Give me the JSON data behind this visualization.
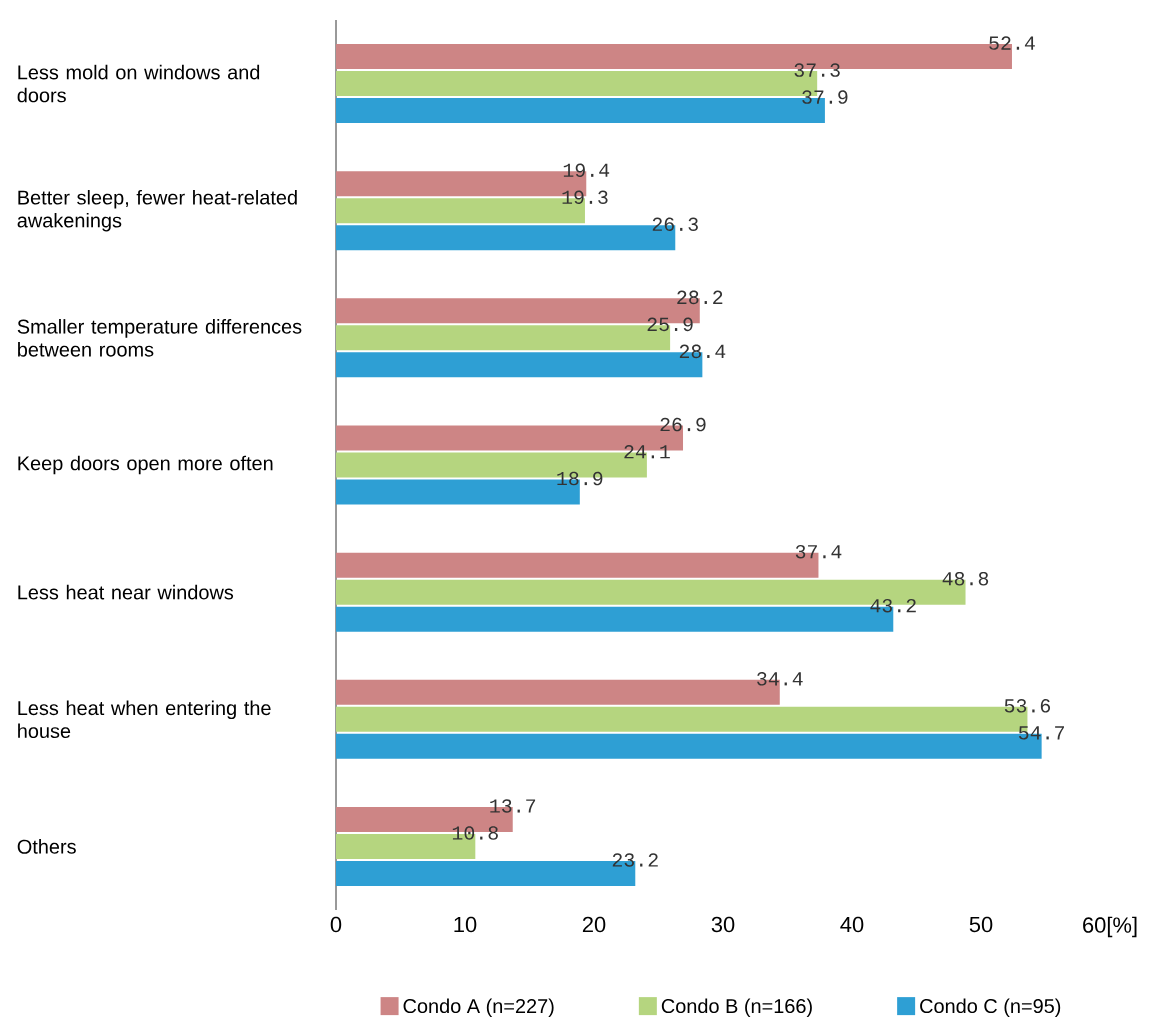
{
  "chart_data": {
    "type": "bar",
    "orientation": "horizontal",
    "categories": [
      "Less mold on windows and doors",
      "Better sleep, fewer heat-related awakenings",
      "Smaller temperature differences between rooms",
      "Keep doors open more often",
      "Less heat near windows",
      "Less heat when entering the house",
      "Others"
    ],
    "series": [
      {
        "name": "Condo A (n=227)",
        "color": "#cd8585",
        "values": [
          52.4,
          19.4,
          28.2,
          26.9,
          37.4,
          34.4,
          13.7
        ]
      },
      {
        "name": "Condo B (n=166)",
        "color": "#b5d57f",
        "values": [
          37.3,
          19.3,
          25.9,
          24.1,
          48.8,
          53.6,
          10.8
        ]
      },
      {
        "name": "Condo C (n=95)",
        "color": "#2e9fd4",
        "values": [
          37.9,
          26.3,
          28.4,
          18.9,
          43.2,
          54.7,
          23.2
        ]
      }
    ],
    "xlim": [
      0,
      60
    ],
    "xticks": [
      0,
      10,
      20,
      30,
      40,
      50,
      {
        "value": 60,
        "label": "60[%]"
      }
    ],
    "data_labels": true,
    "legend": "bottom",
    "grid": false
  }
}
